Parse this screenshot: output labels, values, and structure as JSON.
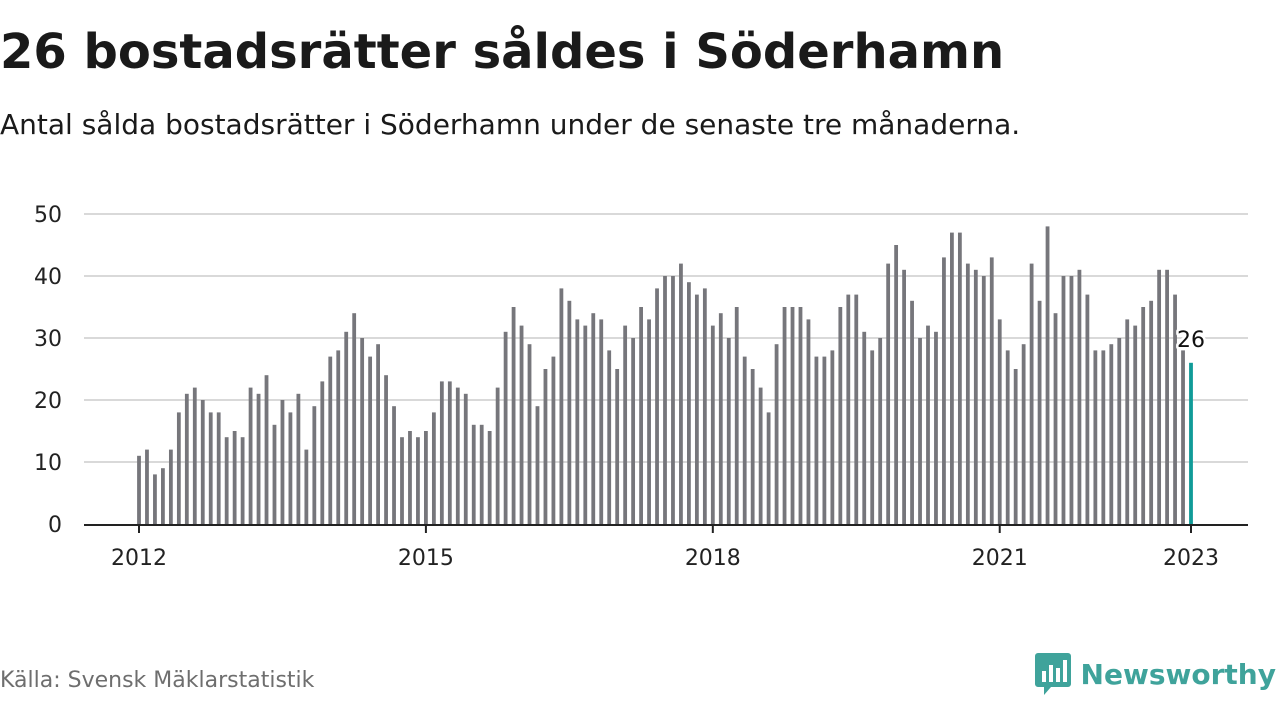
{
  "header": {
    "title": "26 bostadsrätter såldes i Söderhamn",
    "subtitle": "Antal sålda bostadsrätter i Söderhamn under de senaste tre månaderna."
  },
  "footer": {
    "source": "Källa: Svensk Mäklarstatistik",
    "brand": "Newsworthy",
    "brand_icon": "bar-chart-speech-bubble-icon",
    "brand_color": "#3fa39b"
  },
  "colors": {
    "bar": "#76767b",
    "highlight": "#109b98",
    "grid": "#d9d9d9",
    "axis": "#222222"
  },
  "chart_data": {
    "type": "bar",
    "title": "26 bostadsrätter såldes i Söderhamn",
    "subtitle": "Antal sålda bostadsrätter i Söderhamn under de senaste tre månaderna.",
    "xlabel": "",
    "ylabel": "",
    "ylim": [
      0,
      50
    ],
    "yticks": [
      0,
      10,
      20,
      30,
      40,
      50
    ],
    "x_tick_labels": [
      "2012",
      "2015",
      "2018",
      "2021",
      "2023"
    ],
    "grid": true,
    "start_month": "2012-01",
    "end_month": "2023-01",
    "highlight_label": "26",
    "values": [
      11,
      12,
      8,
      9,
      12,
      18,
      21,
      22,
      20,
      18,
      18,
      14,
      15,
      14,
      22,
      21,
      24,
      16,
      20,
      18,
      21,
      12,
      19,
      23,
      27,
      28,
      31,
      34,
      30,
      27,
      29,
      24,
      19,
      14,
      15,
      14,
      15,
      18,
      23,
      23,
      22,
      21,
      16,
      16,
      15,
      22,
      31,
      35,
      32,
      29,
      19,
      25,
      27,
      38,
      36,
      33,
      32,
      34,
      33,
      28,
      25,
      32,
      30,
      35,
      33,
      38,
      40,
      40,
      42,
      39,
      37,
      38,
      32,
      34,
      30,
      35,
      27,
      25,
      22,
      18,
      29,
      35,
      35,
      35,
      33,
      27,
      27,
      28,
      35,
      37,
      37,
      31,
      28,
      30,
      42,
      45,
      41,
      36,
      30,
      32,
      31,
      43,
      47,
      47,
      42,
      41,
      40,
      43,
      33,
      28,
      25,
      29,
      42,
      36,
      48,
      34,
      40,
      40,
      41,
      37,
      28,
      28,
      29,
      30,
      33,
      32,
      35,
      36,
      41,
      41,
      37,
      28,
      26
    ]
  }
}
